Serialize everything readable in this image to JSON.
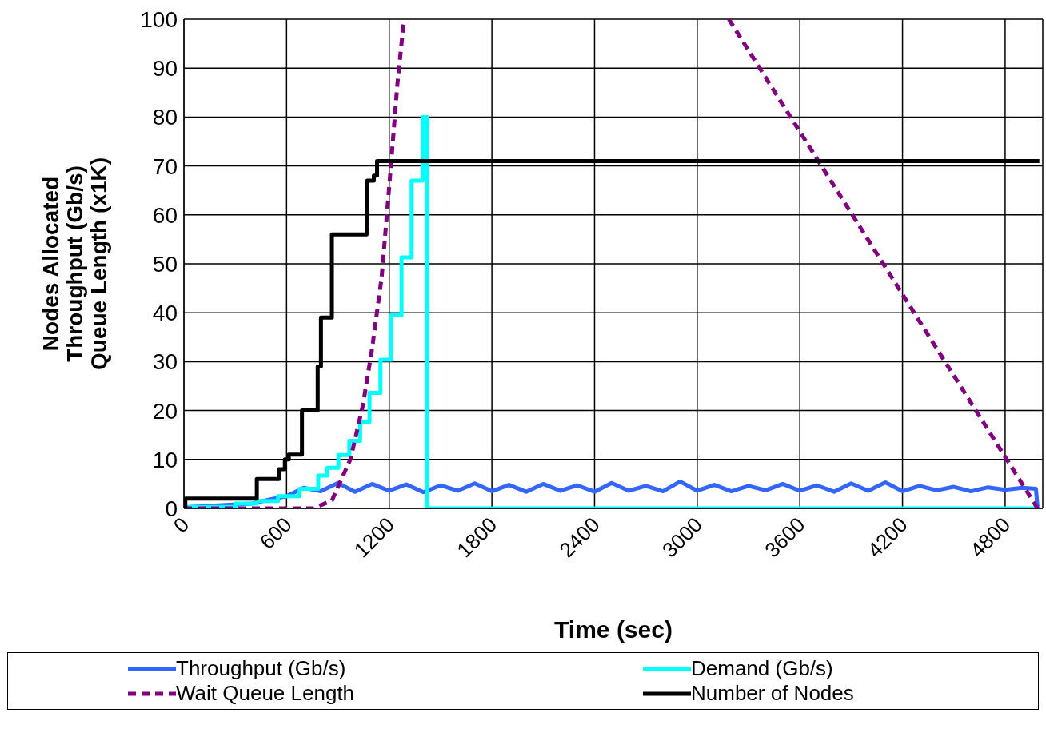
{
  "chart_data": {
    "type": "line",
    "xlabel": "Time (sec)",
    "ylabel": "Nodes Allocated\nThroughput (Gb/s)\nQueue Length (x1K)",
    "xlim": [
      0,
      5020
    ],
    "xticks": [
      0,
      600,
      1200,
      1800,
      2400,
      3000,
      3600,
      4200,
      4800
    ],
    "ylim": [
      0,
      100
    ],
    "yticks": [
      0,
      10,
      20,
      30,
      40,
      50,
      60,
      70,
      80,
      90,
      100
    ],
    "grid": true,
    "legend": "bottom",
    "marker": "none",
    "series": [
      {
        "name": "Throughput (Gb/s)",
        "color": "#3366ff",
        "line_style": "solid",
        "x": [
          0,
          30,
          200,
          400,
          500,
          600,
          700,
          800,
          900,
          1000,
          1100,
          1200,
          1300,
          1400,
          1500,
          1600,
          1700,
          1800,
          1900,
          2000,
          2100,
          2200,
          2300,
          2400,
          2500,
          2600,
          2700,
          2800,
          2900,
          3000,
          3100,
          3200,
          3300,
          3400,
          3500,
          3600,
          3700,
          3800,
          3900,
          4000,
          4100,
          4200,
          4300,
          4400,
          4500,
          4600,
          4700,
          4800,
          4900,
          4980,
          4990
        ],
        "values": [
          0,
          0.3,
          0.6,
          1,
          1.8,
          2.5,
          4.2,
          3.5,
          5.2,
          3.4,
          5,
          3.6,
          4.9,
          3.3,
          4.7,
          3.6,
          5.1,
          3.5,
          4.8,
          3.4,
          5,
          3.6,
          4.7,
          3.4,
          5.2,
          3.6,
          4.6,
          3.5,
          5.5,
          3.6,
          4.8,
          3.5,
          4.6,
          3.7,
          5,
          3.6,
          4.7,
          3.4,
          5.1,
          3.6,
          5.3,
          3.5,
          4.6,
          3.7,
          4.4,
          3.5,
          4.3,
          3.8,
          4.2,
          4,
          0
        ]
      },
      {
        "name": "Demand (Gb/s)",
        "color": "#00ffff",
        "type": "step",
        "line_style": "solid",
        "x": [
          0,
          30,
          300,
          426,
          550,
          676,
          785,
          839,
          903,
          967,
          1030,
          1085,
          1149,
          1212,
          1272,
          1331,
          1395,
          1422,
          5000
        ],
        "values": [
          0,
          0.3,
          1,
          1.5,
          2.5,
          4,
          6.7,
          8.3,
          10.9,
          13.8,
          17.7,
          23.6,
          30.4,
          39.5,
          51.3,
          67,
          80,
          0,
          0
        ]
      },
      {
        "name": "Wait Queue Length",
        "color": "#800080",
        "line_style": "dashed",
        "x": [
          0,
          754,
          865,
          974,
          1047,
          1101,
          1156,
          1210,
          1247,
          1283,
          1290,
          2200,
          3185,
          4990
        ],
        "values": [
          0,
          0,
          1.6,
          10.1,
          21.2,
          32.9,
          47.3,
          70,
          86.4,
          98.8,
          100,
          null,
          100,
          0
        ]
      },
      {
        "name": "Number of Nodes",
        "color": "#000000",
        "type": "step",
        "line_style": "solid",
        "x": [
          0,
          8,
          426,
          555,
          590,
          613,
          690,
          782,
          801,
          865,
          1068,
          1072,
          1110,
          1129,
          5000
        ],
        "values": [
          0,
          2,
          6,
          8,
          10,
          11,
          20,
          29,
          39,
          56,
          58,
          67,
          68,
          71,
          71
        ]
      }
    ]
  }
}
